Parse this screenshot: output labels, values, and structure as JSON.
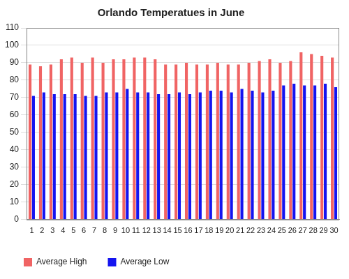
{
  "chart_data": {
    "type": "bar",
    "title": "Orlando Temperatues in June",
    "categories": [
      "1",
      "2",
      "3",
      "4",
      "5",
      "6",
      "7",
      "8",
      "9",
      "10",
      "11",
      "12",
      "13",
      "14",
      "15",
      "16",
      "17",
      "18",
      "19",
      "20",
      "21",
      "22",
      "23",
      "24",
      "25",
      "26",
      "27",
      "28",
      "29",
      "30"
    ],
    "series": [
      {
        "name": "Average High",
        "color": "#f06464",
        "values": [
          89,
          88,
          89,
          92,
          93,
          90,
          93,
          90,
          92,
          92,
          93,
          93,
          92,
          89,
          89,
          90,
          89,
          89,
          90,
          89,
          89,
          90,
          91,
          92,
          90,
          91,
          96,
          95,
          94,
          93
        ]
      },
      {
        "name": "Average Low",
        "color": "#1414f0",
        "values": [
          71,
          73,
          72,
          72,
          72,
          71,
          71,
          73,
          73,
          75,
          73,
          73,
          72,
          72,
          73,
          72,
          73,
          74,
          74,
          73,
          75,
          74,
          73,
          74,
          77,
          78,
          77,
          77,
          78,
          76
        ]
      }
    ],
    "ylim": [
      0,
      110
    ],
    "yticks": [
      0,
      10,
      20,
      30,
      40,
      50,
      60,
      70,
      80,
      90,
      100,
      110
    ],
    "grid": true,
    "legend": "bottom"
  }
}
